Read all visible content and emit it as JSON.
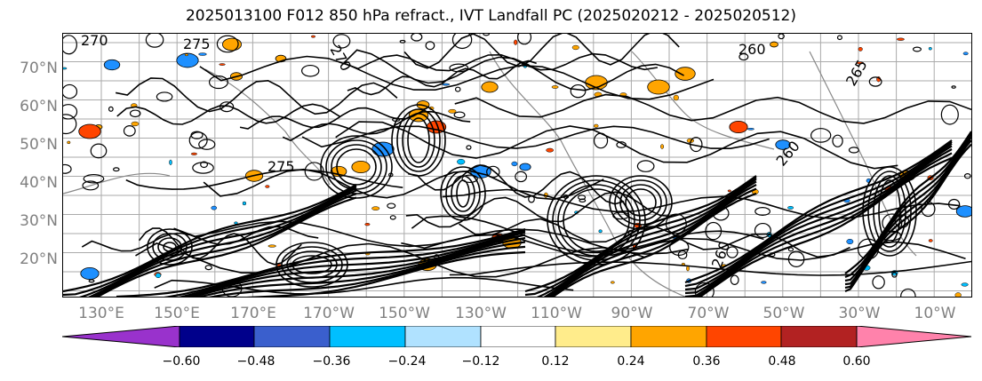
{
  "title": "2025013100 F012 850 hPa refract., IVT Landfall PC (2025020212 - 2025020512)",
  "lat_labels": [
    "70°N",
    "60°N",
    "50°N",
    "40°N",
    "30°N",
    "20°N"
  ],
  "lon_labels": [
    "130°E",
    "150°E",
    "170°E",
    "170°W",
    "150°W",
    "130°W",
    "110°W",
    "90°W",
    "70°W",
    "50°W",
    "30°W",
    "10°W"
  ],
  "contour_labels": [
    "270",
    "275",
    "270",
    "260",
    "265",
    "260",
    "260",
    "275"
  ],
  "colorbar": {
    "tick_labels": [
      "−0.60",
      "−0.48",
      "−0.36",
      "−0.24",
      "−0.12",
      "0.12",
      "0.24",
      "0.36",
      "0.48",
      "0.60"
    ],
    "colors": [
      "#9932cc",
      "#00008b",
      "#3a5fcd",
      "#00bfff",
      "#b0e2ff",
      "#ffffff",
      "#ffec8b",
      "#ffa500",
      "#ff4500",
      "#b22222",
      "#ff82ab"
    ]
  },
  "shading_colors": {
    "orange": "#ffa500",
    "red": "#ff4500",
    "blue": "#1e90ff",
    "lightblue": "#00bfff"
  }
}
